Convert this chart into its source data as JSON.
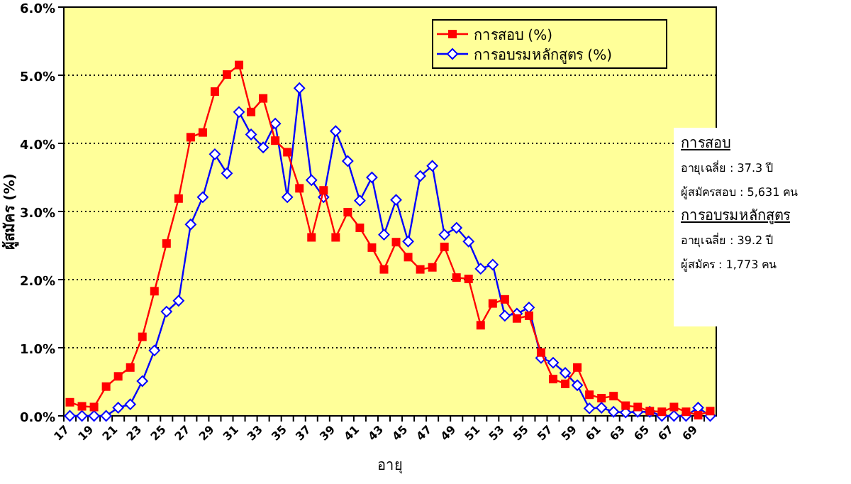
{
  "chart_data": {
    "type": "line",
    "xlabel": "อายุ",
    "ylabel": "ผู้สมัคร (%)",
    "categories": [
      "17",
      null,
      "19",
      null,
      "21",
      null,
      "23",
      null,
      "25",
      null,
      "27",
      null,
      "29",
      null,
      "31",
      null,
      "33",
      null,
      "35",
      null,
      "37",
      null,
      "39",
      null,
      "41",
      null,
      "43",
      null,
      "45",
      null,
      "47",
      null,
      "49",
      null,
      "51",
      null,
      "53",
      null,
      "55",
      null,
      "57",
      null,
      "59",
      null,
      "61",
      null,
      "63",
      null,
      "65",
      null,
      "67",
      null,
      "69",
      null
    ],
    "series": [
      {
        "name": "การสอบ (%)",
        "color": "#ff0000",
        "marker": "square",
        "values": [
          0.2,
          0.14,
          0.13,
          0.43,
          0.58,
          0.71,
          1.16,
          1.83,
          2.53,
          3.19,
          4.09,
          4.16,
          4.76,
          5.01,
          5.15,
          4.46,
          4.66,
          4.04,
          3.87,
          3.34,
          2.62,
          3.31,
          2.62,
          2.99,
          2.76,
          2.47,
          2.15,
          2.55,
          2.33,
          2.15,
          2.18,
          2.48,
          2.03,
          2.01,
          1.33,
          1.65,
          1.71,
          1.43,
          1.47,
          0.93,
          0.54,
          0.47,
          0.71,
          0.31,
          0.26,
          0.29,
          0.15,
          0.13,
          0.07,
          0.06,
          0.13,
          0.06,
          0.01,
          0.07
        ]
      },
      {
        "name": "การอบรมหลักสูตร (%)",
        "color": "#0000ff",
        "marker": "diamond",
        "values": [
          0,
          0,
          0,
          0,
          0.12,
          0.17,
          0.51,
          0.96,
          1.53,
          1.69,
          2.81,
          3.21,
          3.84,
          3.56,
          4.46,
          4.13,
          3.94,
          4.29,
          3.21,
          4.81,
          3.46,
          3.21,
          4.18,
          3.74,
          3.16,
          3.5,
          2.66,
          3.17,
          2.56,
          3.52,
          3.67,
          2.66,
          2.76,
          2.56,
          2.16,
          2.22,
          1.47,
          1.5,
          1.59,
          0.85,
          0.78,
          0.63,
          0.45,
          0.11,
          0.12,
          0.06,
          0.05,
          0.06,
          0.06,
          0,
          0,
          0,
          0.12,
          0
        ]
      }
    ],
    "ylim": [
      0,
      6
    ],
    "yticks": [
      {
        "value": 0,
        "label": "0.0%"
      },
      {
        "value": 1,
        "label": "1.0%"
      },
      {
        "value": 2,
        "label": "2.0%"
      },
      {
        "value": 3,
        "label": "3.0%"
      },
      {
        "value": 4,
        "label": "4.0%"
      },
      {
        "value": 5,
        "label": "5.0%"
      },
      {
        "value": 6,
        "label": "6.0%"
      }
    ],
    "grid": "y",
    "legend": "top right",
    "annotations": [
      "การสอบ",
      "อายุเฉลี่ย : 37.3 ปี",
      "ผู้สมัครสอบ : 5,631 คน",
      "การอบรมหลักสูตร",
      "อายุเฉลี่ย : 39.2 ปี",
      "ผู้สมัคร : 1,773 คน"
    ]
  }
}
